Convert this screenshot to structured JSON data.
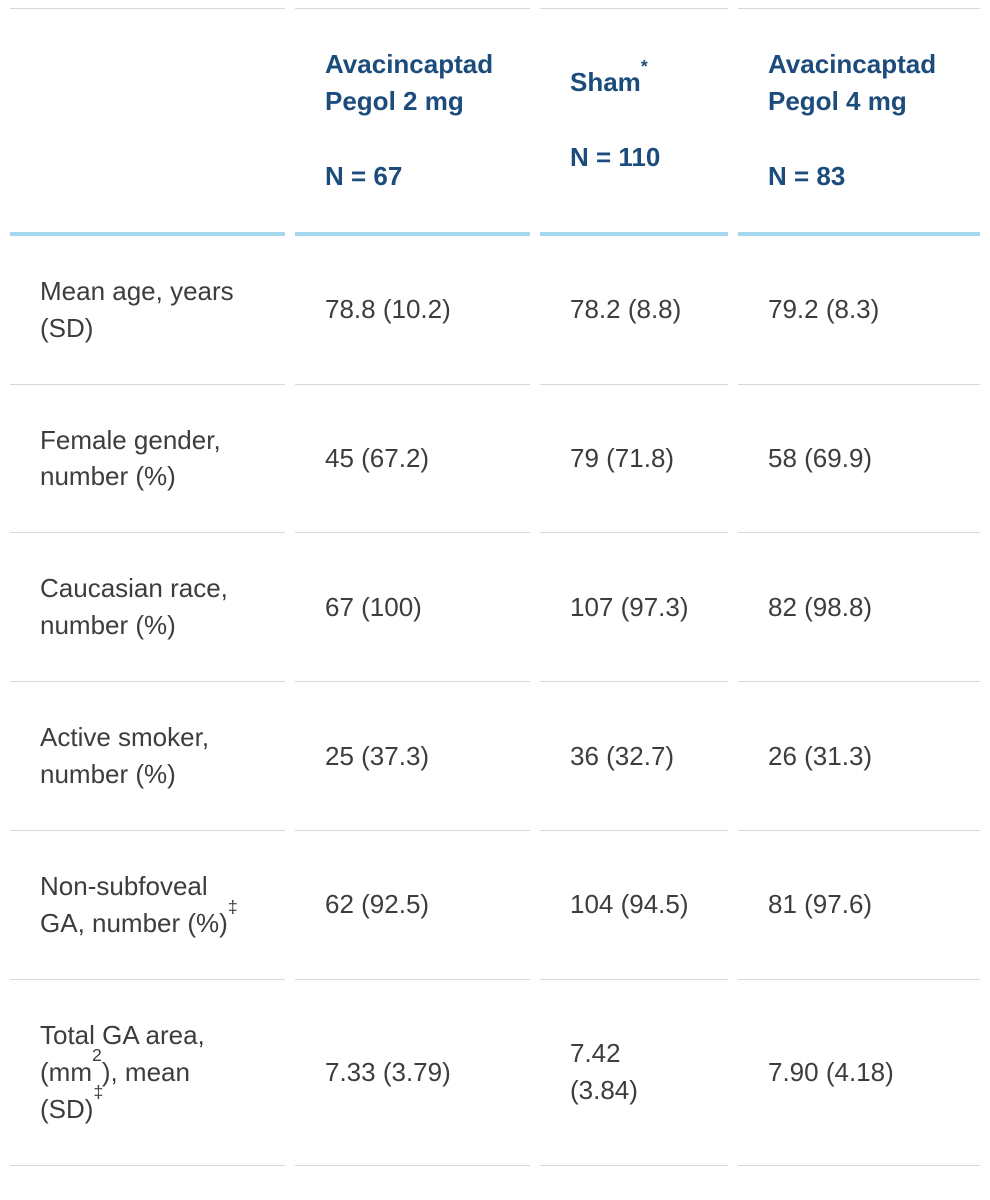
{
  "colors": {
    "background": "#ffffff",
    "header_text": "#1c4c7c",
    "header_underline": "#a6d7ef",
    "row_border": "#d8d8d8",
    "body_text": "#3d3d3d"
  },
  "table": {
    "header": {
      "corner": "",
      "columns": [
        {
          "title_line1": "Avacincaptad",
          "title_line2": "Pegol 2 mg",
          "sup": "",
          "n": "N = 67"
        },
        {
          "title_line1": "Sham",
          "title_line2": "",
          "sup": "*",
          "n": "N = 110"
        },
        {
          "title_line1": "Avacincaptad",
          "title_line2": "Pegol 4 mg",
          "sup": "",
          "n": "N = 83"
        }
      ]
    },
    "rows": [
      {
        "label": "Mean age, years (SD)",
        "values": [
          "78.8 (10.2)",
          "78.2 (8.8)",
          "79.2 (8.3)"
        ]
      },
      {
        "label": "Female gender, number (%)",
        "values": [
          "45 (67.2)",
          "79 (71.8)",
          "58 (69.9)"
        ]
      },
      {
        "label": "Caucasian race, number (%)",
        "values": [
          "67 (100)",
          "107 (97.3)",
          "82 (98.8)"
        ]
      },
      {
        "label": "Active smoker, number (%)",
        "values": [
          "25 (37.3)",
          "36 (32.7)",
          "26 (31.3)"
        ]
      },
      {
        "label": "Non-subfoveal GA, number (%)",
        "label_sup": "‡",
        "values": [
          "62 (92.5)",
          "104 (94.5)",
          "81 (97.6)"
        ]
      },
      {
        "label_parts": [
          "Total GA area, (mm",
          "2",
          "), mean (SD)",
          "‡"
        ],
        "values": [
          "7.33 (3.79)",
          "7.42 (3.84)",
          "7.90 (4.18)"
        ]
      }
    ]
  }
}
